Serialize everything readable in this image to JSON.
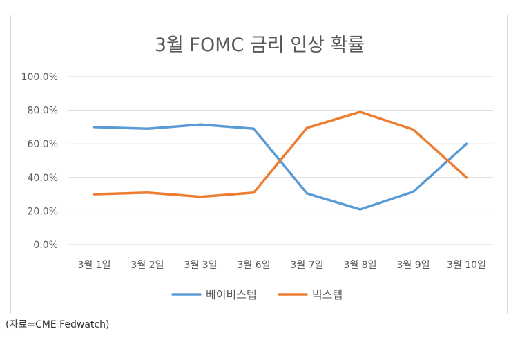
{
  "chart_data": {
    "type": "line",
    "title": "3월 FOMC 금리 인상 확률",
    "categories": [
      "3월 1일",
      "3월 2일",
      "3월 3일",
      "3월 6일",
      "3월 7일",
      "3월 8일",
      "3월 9일",
      "3월 10일"
    ],
    "series": [
      {
        "name": "베이비스텝",
        "color": "#5b9bd5",
        "values": [
          70.0,
          69.0,
          71.5,
          69.0,
          30.5,
          21.0,
          31.5,
          60.0
        ]
      },
      {
        "name": "빅스텝",
        "color": "#ed7d31",
        "values": [
          30.0,
          31.0,
          28.5,
          31.0,
          69.5,
          79.0,
          68.5,
          40.0
        ]
      }
    ],
    "ylim": [
      0,
      100
    ],
    "yticks": [
      "0.0%",
      "20.0%",
      "40.0%",
      "60.0%",
      "80.0%",
      "100.0%"
    ],
    "xlabel": "",
    "ylabel": "",
    "grid": true,
    "legend_position": "bottom"
  },
  "source_note": "(자료=CME Fedwatch)"
}
